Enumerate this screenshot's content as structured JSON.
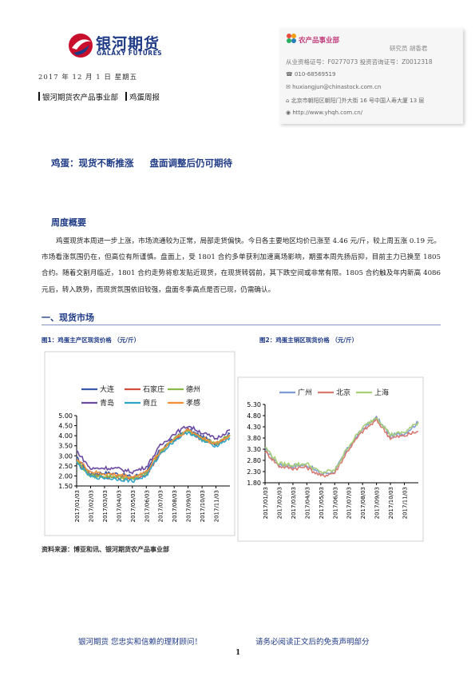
{
  "header": {
    "logo_cn": "银河期货",
    "logo_en": "GALAXY FUTURES",
    "date": "2017 年 12 月 1 日   星期五",
    "dept": "银河期货农产品事业部",
    "report": "鸡蛋周报"
  },
  "contact": {
    "dept": "农产品事业部",
    "researcher": "研究员  胡香君",
    "license": "从业资格证号：F0277073   投资咨询证号：Z0012318",
    "phone": "010-68569519",
    "email": "huxiangjun@chinastock.com.cn",
    "address": "北京市朝阳区朝阳门外大街 16 号中国人寿大厦 13 层",
    "website": "http://www.yhqh.com.cn/"
  },
  "title": {
    "main": "鸡蛋：现货不断推涨",
    "sub": "盘面调整后仍可期待"
  },
  "weekly": {
    "heading": "周度概要",
    "paragraph": "鸡蛋现货本周进一步上涨，市场流通较为正常，局部走货偏快。今日各主要地区均价已涨至 4.46 元/斤，较上周五涨 0.19 元。市场看涨氛围仍在，但高位有所谨慎。盘面上，受 1801 合约多单获利加速离场影响，期蛋本周先扬后抑，目前主力已换至 1805 合约。随着交割月临近，1801 合约走势将愈发贴近现货，在现货转弱前，其下跌空间或非常有限。1805 合约触及年内新高 4086 元后，转入跌势，而现货氛围依旧较强，盘面冬季高点是否已现，仍需确认。"
  },
  "spot": {
    "heading": "一、现货市场"
  },
  "fig1": {
    "caption": "图1：鸡蛋主产区现货价格  （元/斤）",
    "colors": {
      "大连": "#3a5aa8",
      "石家庄": "#d34d3c",
      "德州": "#8dbb4a",
      "青岛": "#6b4aa0",
      "商丘": "#2fa6c8",
      "孝感": "#f0913a"
    }
  },
  "fig2": {
    "caption": "图2：鸡蛋主销区现货价格  （元/斤）",
    "colors": {
      "广州": "#7e9bd8",
      "北京": "#d97a72",
      "上海": "#a7cf78"
    }
  },
  "chart_data": [
    {
      "type": "line",
      "x": [
        "2017/01/03",
        "2017/02/03",
        "2017/03/03",
        "2017/04/03",
        "2017/05/03",
        "2017/06/03",
        "2017/07/03",
        "2017/08/03",
        "2017/09/03",
        "2017/10/03",
        "2017/11/03",
        "2017/12/01"
      ],
      "series": [
        {
          "name": "大连",
          "values": [
            2.9,
            2.1,
            2.15,
            2.1,
            1.95,
            2.2,
            3.3,
            3.85,
            4.3,
            3.95,
            3.6,
            4.1
          ]
        },
        {
          "name": "石家庄",
          "values": [
            2.7,
            2.05,
            1.95,
            1.9,
            1.85,
            2.05,
            3.15,
            3.8,
            4.25,
            3.8,
            3.55,
            4.0
          ]
        },
        {
          "name": "德州",
          "values": [
            2.75,
            2.0,
            2.0,
            1.95,
            1.85,
            2.1,
            3.2,
            3.85,
            4.3,
            3.85,
            3.6,
            4.05
          ]
        },
        {
          "name": "青岛",
          "values": [
            3.25,
            2.35,
            2.4,
            2.35,
            2.2,
            2.45,
            3.5,
            4.1,
            4.5,
            4.15,
            3.85,
            4.3
          ]
        },
        {
          "name": "商丘",
          "values": [
            2.65,
            1.95,
            1.9,
            1.85,
            1.75,
            2.0,
            3.1,
            3.75,
            4.2,
            3.75,
            3.5,
            3.9
          ]
        },
        {
          "name": "孝感",
          "values": [
            2.85,
            2.2,
            2.1,
            2.05,
            1.95,
            2.2,
            3.25,
            3.85,
            4.3,
            3.9,
            3.6,
            4.0
          ]
        }
      ],
      "ylim": [
        1.5,
        5.0
      ]
    },
    {
      "type": "line",
      "x": [
        "2017/01/03",
        "2017/02/03",
        "2017/03/03",
        "2017/04/03",
        "2017/05/03",
        "2017/06/03",
        "2017/07/03",
        "2017/08/03",
        "2017/09/03",
        "2017/10/03",
        "2017/11/03",
        "2017/12/01"
      ],
      "series": [
        {
          "name": "广州",
          "values": [
            3.3,
            2.6,
            2.55,
            2.6,
            2.2,
            2.3,
            3.4,
            4.2,
            4.7,
            3.9,
            4.0,
            4.5
          ]
        },
        {
          "name": "北京",
          "values": [
            3.2,
            2.55,
            2.45,
            2.5,
            2.1,
            2.25,
            3.3,
            4.1,
            4.6,
            3.8,
            3.9,
            4.1
          ]
        },
        {
          "name": "上海",
          "values": [
            3.4,
            2.65,
            2.6,
            2.65,
            2.25,
            2.35,
            3.45,
            4.25,
            4.75,
            3.95,
            4.05,
            4.5
          ]
        }
      ],
      "ylim": [
        1.8,
        5.3
      ]
    }
  ],
  "source": "资料来源：博亚和讯、银河期货农产品事业部",
  "footer": {
    "left": "银河期货   您忠实和信赖的理财顾问！",
    "right": "请务必阅读正文后的免责声明部分",
    "page": "1"
  }
}
